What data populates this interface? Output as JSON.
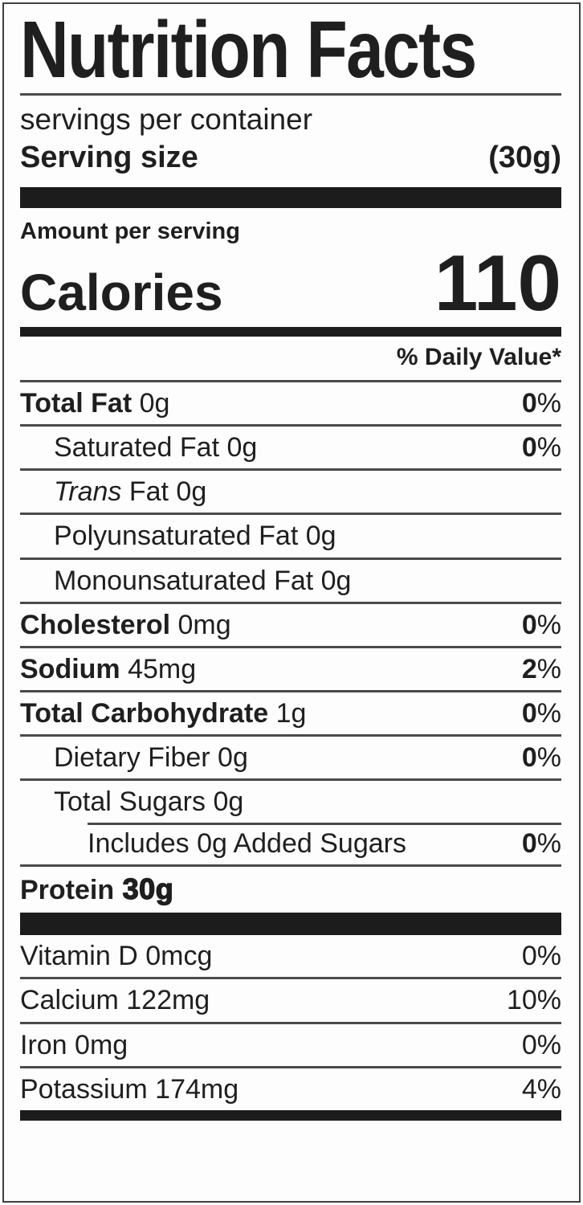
{
  "title": "Nutrition Facts",
  "serving": {
    "per_container": "servings per container",
    "size_label": "Serving size",
    "size_value": "(30g)"
  },
  "calories": {
    "amount_per_serving": "Amount per serving",
    "label": "Calories",
    "value": "110"
  },
  "daily_value_header": "% Daily Value*",
  "nutrients": [
    {
      "name": "Total Fat",
      "amount": " 0g",
      "dv_num": "0",
      "dv_pct": "%"
    },
    {
      "name": "Saturated Fat",
      "amount": " 0g",
      "dv_num": "0",
      "dv_pct": "%"
    },
    {
      "name_italic": "Trans",
      "name": " Fat",
      "amount": " 0g"
    },
    {
      "name": "Polyunsaturated Fat",
      "amount": " 0g"
    },
    {
      "name": "Monounsaturated Fat",
      "amount": " 0g"
    },
    {
      "name": "Cholesterol",
      "amount": " 0mg",
      "dv_num": "0",
      "dv_pct": "%"
    },
    {
      "name": "Sodium",
      "amount": " 45mg",
      "dv_num": "2",
      "dv_pct": "%"
    },
    {
      "name": "Total Carbohydrate",
      "amount": " 1g",
      "dv_num": "0",
      "dv_pct": "%"
    },
    {
      "name": "Dietary Fiber",
      "amount": " 0g",
      "dv_num": "0",
      "dv_pct": "%"
    },
    {
      "name": "Total Sugars",
      "amount": " 0g"
    },
    {
      "name": "Includes 0g Added Sugars",
      "dv_num": "0",
      "dv_pct": "%"
    },
    {
      "name": "Protein",
      "amount": " 30g"
    }
  ],
  "micronutrients": [
    {
      "name": "Vitamin D",
      "amount": " 0mcg",
      "dv_num": "0",
      "dv_pct": "%"
    },
    {
      "name": "Calcium",
      "amount": " 122mg",
      "dv_num": "10",
      "dv_pct": "%"
    },
    {
      "name": "Iron",
      "amount": " 0mg",
      "dv_num": "0",
      "dv_pct": "%"
    },
    {
      "name": "Potassium",
      "amount": " 174mg",
      "dv_num": "4",
      "dv_pct": "%"
    }
  ],
  "colors": {
    "text": "#1f1f1f",
    "bar": "#1c1c1c",
    "rule": "#4a4a4a",
    "background": "#fdfdfd"
  }
}
